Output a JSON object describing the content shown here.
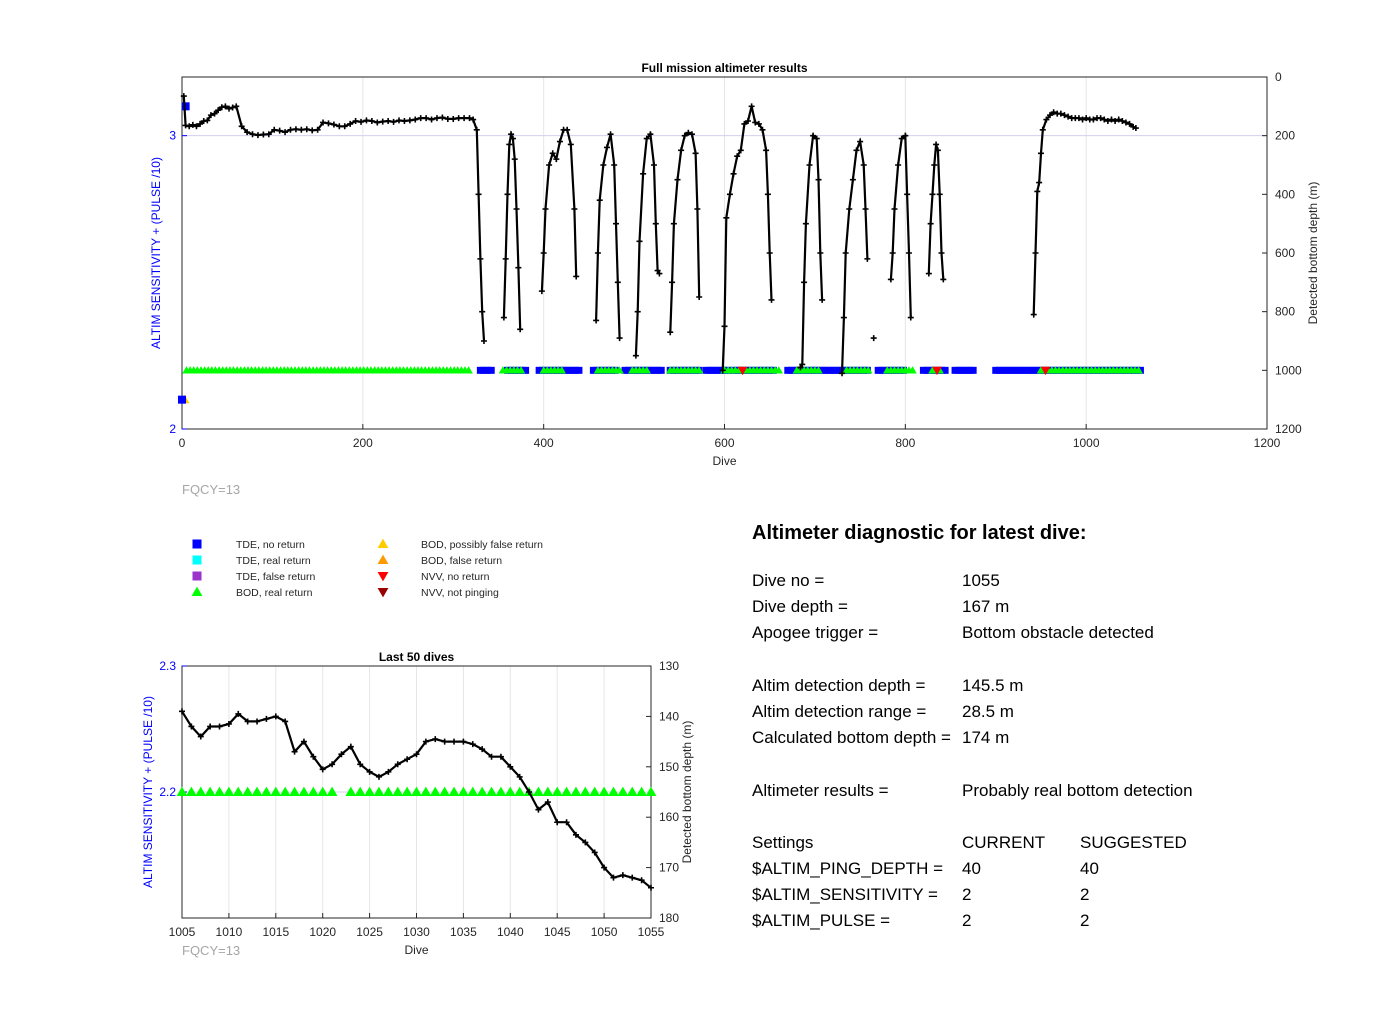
{
  "chart_data": [
    {
      "type": "scatter",
      "title": "Full mission altimeter results",
      "xlabel": "Dive",
      "ylabel_left": "ALTIM SENSITIVITY + (PULSE /10)",
      "ylabel_right": "Detected bottom depth (m)",
      "xlim": [
        0,
        1200
      ],
      "ylim_left": [
        2,
        3.2
      ],
      "ylim_right": [
        1200,
        0
      ],
      "x_ticks": [
        "0",
        "200",
        "400",
        "600",
        "800",
        "1000",
        "1200"
      ],
      "y_left_ticks": [
        "2",
        "3"
      ],
      "y_right_ticks": [
        "0",
        "200",
        "400",
        "600",
        "800",
        "1000",
        "1200"
      ],
      "annotation": "FQCY=13",
      "grid": true,
      "bottom_depth_series": {
        "name": "Detected bottom depth",
        "color": "#000000",
        "segments": [
          {
            "x": [
              2,
              4,
              8,
              12,
              16,
              20,
              24,
              28,
              32,
              36,
              40,
              44,
              48,
              52,
              56,
              60,
              66,
              72,
              78,
              84,
              90,
              96,
              102,
              108,
              114,
              120,
              126,
              132,
              138,
              144,
              150,
              156,
              162,
              168,
              174,
              180,
              186,
              192,
              198,
              204,
              210,
              216,
              222,
              228,
              234,
              240,
              246,
              252,
              258,
              264,
              270,
              276,
              282,
              288,
              294,
              300,
              306,
              312,
              318,
              322,
              326,
              328,
              330,
              332,
              334
            ],
            "y": [
              65,
              165,
              168,
              163,
              168,
              160,
              150,
              148,
              130,
              125,
              113,
              103,
              100,
              108,
              104,
              100,
              168,
              188,
              195,
              198,
              196,
              195,
              180,
              183,
              188,
              180,
              178,
              180,
              178,
              182,
              180,
              155,
              158,
              162,
              168,
              168,
              160,
              150,
              153,
              148,
              150,
              155,
              152,
              150,
              153,
              148,
              150,
              148,
              145,
              140,
              140,
              145,
              140,
              138,
              143,
              143,
              140,
              140,
              140,
              145,
              180,
              400,
              620,
              800,
              900
            ]
          },
          {
            "x": [
              356,
              358,
              360,
              362,
              364,
              366,
              368,
              370,
              372,
              374
            ],
            "y": [
              820,
              620,
              400,
              230,
              195,
              210,
              280,
              450,
              650,
              860
            ]
          },
          {
            "x": [
              398,
              400,
              402,
              406,
              410,
              414,
              418,
              422,
              426,
              430,
              434,
              436
            ],
            "y": [
              730,
              600,
              450,
              300,
              260,
              280,
              220,
              180,
              180,
              230,
              450,
              680
            ]
          },
          {
            "x": [
              458,
              460,
              462,
              466,
              470,
              474,
              478,
              480,
              482,
              484
            ],
            "y": [
              830,
              600,
              420,
              300,
              240,
              195,
              300,
              500,
              700,
              890
            ]
          },
          {
            "x": [
              502,
              504,
              506,
              510,
              514,
              518,
              522,
              524,
              526,
              528
            ],
            "y": [
              950,
              800,
              560,
              330,
              210,
              195,
              300,
              500,
              660,
              670
            ]
          },
          {
            "x": [
              540,
              542,
              544,
              548,
              552,
              556,
              560,
              564,
              568,
              570,
              572
            ],
            "y": [
              870,
              700,
              500,
              350,
              250,
              200,
              190,
              195,
              260,
              450,
              750
            ]
          },
          {
            "x": [
              598,
              600,
              602,
              606,
              610,
              614,
              618,
              622,
              626,
              630,
              634,
              638,
              642,
              646,
              648,
              650,
              652
            ],
            "y": [
              1000,
              850,
              480,
              400,
              330,
              270,
              250,
              160,
              150,
              100,
              155,
              160,
              180,
              250,
              400,
              600,
              760
            ]
          },
          {
            "x": [
              684,
              686,
              688,
              690,
              694,
              698,
              702,
              704,
              706,
              708
            ],
            "y": [
              990,
              980,
              700,
              500,
              300,
              200,
              210,
              350,
              600,
              760
            ]
          },
          {
            "x": [
              730,
              732,
              734,
              738,
              742,
              746,
              750,
              754,
              756,
              758
            ],
            "y": [
              1010,
              820,
              600,
              450,
              350,
              250,
              220,
              300,
              450,
              620
            ]
          },
          {
            "x": [
              784,
              786,
              788,
              792,
              796,
              800,
              802,
              804,
              806
            ],
            "y": [
              690,
              600,
              450,
              300,
              210,
              200,
              400,
              600,
              820
            ]
          },
          {
            "x": [
              826,
              828,
              830,
              832,
              834,
              836,
              838,
              840,
              842
            ],
            "y": [
              670,
              500,
              400,
              300,
              230,
              250,
              400,
              600,
              690
            ]
          },
          {
            "x": [
              942,
              944,
              946,
              948,
              950,
              952,
              956,
              960,
              964,
              968,
              972,
              976,
              980,
              984,
              988,
              992,
              996,
              1000,
              1004,
              1008,
              1012,
              1016,
              1020,
              1024,
              1028,
              1032,
              1036,
              1040,
              1044,
              1048,
              1052,
              1055
            ],
            "y": [
              810,
              600,
              390,
              360,
              260,
              180,
              145,
              130,
              120,
              125,
              125,
              130,
              135,
              140,
              140,
              140,
              145,
              140,
              145,
              145,
              140,
              140,
              145,
              150,
              145,
              150,
              145,
              150,
              155,
              160,
              170,
              174
            ]
          }
        ],
        "isolated_points": [
          {
            "x": 765,
            "y": 890
          }
        ]
      },
      "sensitivity_series": [
        {
          "name": "TDE, no return",
          "color": "#0000ff",
          "marker": "square",
          "runs": [
            [
              330,
              345
            ],
            [
              360,
              380
            ],
            [
              395,
              440
            ],
            [
              455,
              480
            ],
            [
              490,
              530
            ],
            [
              540,
              575
            ],
            [
              580,
              605
            ],
            [
              610,
              655
            ],
            [
              670,
              760
            ],
            [
              770,
              800
            ],
            [
              820,
              845
            ],
            [
              855,
              875
            ],
            [
              900,
              1060
            ]
          ],
          "value": 2.2
        },
        {
          "name": "BOD, real return",
          "color": "#00ff00",
          "marker": "triangle-up",
          "runs": [
            [
              5,
              320
            ],
            [
              355,
              375
            ],
            [
              400,
              420
            ],
            [
              460,
              485
            ],
            [
              498,
              515
            ],
            [
              540,
              575
            ],
            [
              600,
              660
            ],
            [
              680,
              705
            ],
            [
              735,
              760
            ],
            [
              780,
              810
            ],
            [
              830,
              840
            ],
            [
              950,
              1060
            ]
          ],
          "value": 2.2
        },
        {
          "name": "BOD, possibly false return",
          "color": "#ffcc00",
          "marker": "triangle-up",
          "points": [
            [
              3,
              2.1
            ]
          ]
        },
        {
          "name": "TDE, no return",
          "color": "#0000ff",
          "marker": "square",
          "points": [
            [
              4,
              3.1
            ],
            [
              0,
              2.1
            ]
          ]
        },
        {
          "name": "NVV, no return",
          "color": "#ff0000",
          "marker": "triangle-down",
          "points": [
            [
              620,
              2.2
            ],
            [
              955,
              2.2
            ],
            [
              835,
              2.2
            ]
          ]
        }
      ]
    },
    {
      "type": "scatter",
      "title": "Last 50 dives",
      "xlabel": "Dive",
      "ylabel_left": "ALTIM SENSITIVITY + (PULSE /10)",
      "ylabel_right": "Detected bottom depth (m)",
      "xlim": [
        1005,
        1055
      ],
      "ylim_left": [
        2.1,
        2.3
      ],
      "ylim_right": [
        180,
        130
      ],
      "x_ticks": [
        "1005",
        "1010",
        "1015",
        "1020",
        "1025",
        "1030",
        "1035",
        "1040",
        "1045",
        "1050",
        "1055"
      ],
      "y_left_ticks": [
        "2.2",
        "2.3"
      ],
      "y_right_ticks": [
        "130",
        "140",
        "150",
        "160",
        "170",
        "180"
      ],
      "annotation": "FQCY=13",
      "grid": true,
      "bottom_depth_series": {
        "name": "Detected bottom depth",
        "color": "#000000",
        "x": [
          1005,
          1006,
          1007,
          1008,
          1009,
          1010,
          1011,
          1012,
          1013,
          1014,
          1015,
          1016,
          1017,
          1018,
          1019,
          1020,
          1021,
          1022,
          1023,
          1024,
          1025,
          1026,
          1027,
          1028,
          1029,
          1030,
          1031,
          1032,
          1033,
          1034,
          1035,
          1036,
          1037,
          1038,
          1039,
          1040,
          1041,
          1042,
          1043,
          1044,
          1045,
          1046,
          1047,
          1048,
          1049,
          1050,
          1051,
          1052,
          1053,
          1054,
          1055
        ],
        "y": [
          139,
          142,
          144,
          142,
          142,
          141.5,
          139.5,
          141,
          141,
          140.5,
          140,
          141,
          147,
          145,
          148,
          150.5,
          149.5,
          147.5,
          146,
          149.5,
          151,
          152,
          151,
          149.5,
          148.5,
          147.5,
          145,
          144.5,
          145,
          145,
          145,
          145.5,
          146.5,
          148,
          148,
          150,
          152,
          155,
          158.5,
          157,
          161,
          161,
          163.5,
          165,
          167,
          170,
          172,
          171.5,
          172,
          172.5,
          174
        ]
      },
      "sensitivity_series": [
        {
          "name": "BOD, real return",
          "color": "#00ff00",
          "marker": "triangle-up",
          "x": [
            1005,
            1006,
            1007,
            1008,
            1009,
            1010,
            1011,
            1012,
            1013,
            1014,
            1015,
            1016,
            1017,
            1018,
            1019,
            1020,
            1021,
            1023,
            1024,
            1025,
            1026,
            1027,
            1028,
            1029,
            1030,
            1031,
            1032,
            1033,
            1034,
            1035,
            1036,
            1037,
            1038,
            1039,
            1040,
            1041,
            1042,
            1043,
            1044,
            1045,
            1046,
            1047,
            1048,
            1049,
            1050,
            1051,
            1052,
            1053,
            1054,
            1055
          ],
          "value": 2.2
        }
      ]
    }
  ],
  "legend": [
    {
      "label": "TDE, no return",
      "color": "#0000ff",
      "marker": "square"
    },
    {
      "label": "TDE, real return",
      "color": "#00ffff",
      "marker": "square"
    },
    {
      "label": "TDE, false return",
      "color": "#9933cc",
      "marker": "square"
    },
    {
      "label": "BOD, real return",
      "color": "#00ff00",
      "marker": "triangle-up"
    },
    {
      "label": "BOD, possibly false return",
      "color": "#ffcc00",
      "marker": "triangle-up"
    },
    {
      "label": "BOD, false return",
      "color": "#ff9900",
      "marker": "triangle-up"
    },
    {
      "label": "NVV, no return",
      "color": "#ff0000",
      "marker": "triangle-down"
    },
    {
      "label": "NVV, not pinging",
      "color": "#990000",
      "marker": "triangle-down"
    }
  ],
  "diagnostic": {
    "heading": "Altimeter diagnostic for latest dive:",
    "dive_no": {
      "label": "Dive no =",
      "value": "1055"
    },
    "dive_depth": {
      "label": "Dive depth =",
      "value": "167 m"
    },
    "apogee_trigger": {
      "label": "Apogee trigger =",
      "value": "Bottom obstacle detected"
    },
    "altim_detection_depth": {
      "label": "Altim detection depth =",
      "value": "145.5 m"
    },
    "altim_detection_range": {
      "label": "Altim detection range =",
      "value": "28.5 m"
    },
    "calculated_bottom_depth": {
      "label": "Calculated bottom depth =",
      "value": "174 m"
    },
    "altimeter_results": {
      "label": "Altimeter results =",
      "value": "Probably real bottom detection"
    },
    "settings_header": {
      "label": "Settings",
      "current": "CURRENT",
      "suggested": "SUGGESTED"
    },
    "settings": [
      {
        "label": "$ALTIM_PING_DEPTH =",
        "current": "40",
        "suggested": "40"
      },
      {
        "label": "$ALTIM_SENSITIVITY =",
        "current": "2",
        "suggested": "2"
      },
      {
        "label": "$ALTIM_PULSE =",
        "current": "2",
        "suggested": "2"
      }
    ]
  }
}
